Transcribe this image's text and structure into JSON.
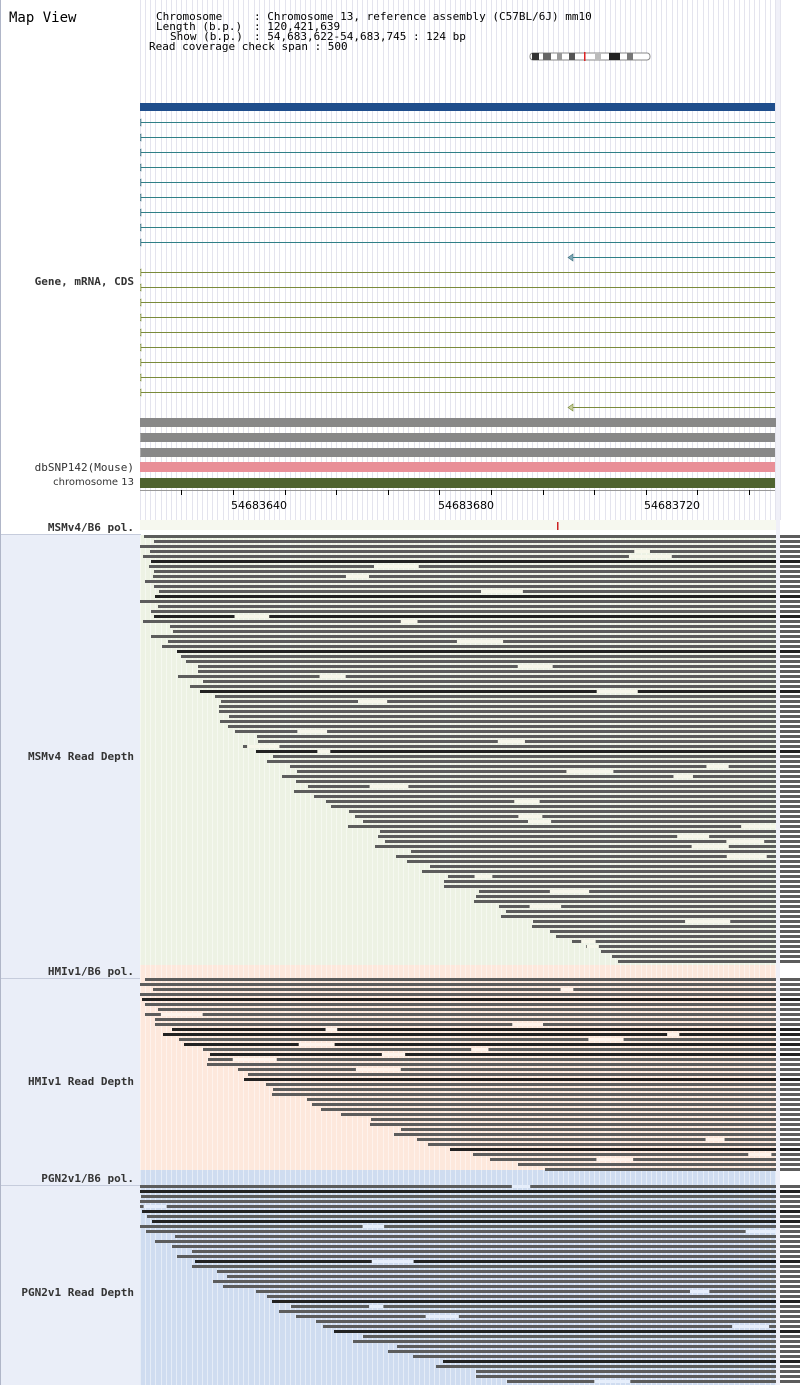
{
  "app_title": "Map View",
  "header": {
    "chromosome_key": "Chromosome",
    "chromosome_val": ": Chromosome 13, reference assembly (C57BL/6J) mm10",
    "length_key": "Length (b.p.)",
    "length_val": ": 120,421,639",
    "show_key": "Show (b.p.)",
    "show_val": ": 54,683,622-54,683,745 : 124 bp",
    "coverage_line": "Read coverage check span : 500"
  },
  "tracks": {
    "gene_label": "Gene, mRNA, CDS",
    "dbsnp_label": "dbSNP142(Mouse)",
    "chrom_label": "chromosome 13",
    "msm_pol_label": "MSMv4/B6 pol.",
    "msm_depth_label": "MSMv4 Read Depth",
    "hmi_pol_label": "HMIv1/B6 pol.",
    "hmi_depth_label": "HMIv1 Read Depth",
    "pgn_pol_label": "PGN2v1/B6 pol.",
    "pgn_depth_label": "PGN2v1 Read Depth"
  },
  "ruler": {
    "tick_labels": [
      "54683640",
      "54683680",
      "54683720"
    ]
  },
  "colors": {
    "gene_main": "#1f4e8c",
    "mrna_teal": "#2f7f86",
    "cds_olive": "#7a8a3a",
    "grey_bar": "#888888",
    "dbsnp": "#e98f98",
    "chromosome": "#4f6330",
    "msm_bg": "#edf2e4",
    "hmi_bg": "#fde8dc",
    "pgn_bg": "#cfdcf0",
    "read": "#5c5c5c",
    "read_dark": "#222222",
    "polymorphism": "#cc2222"
  }
}
